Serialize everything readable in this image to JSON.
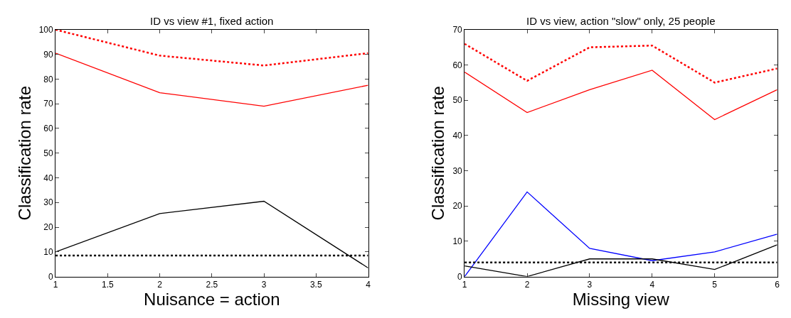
{
  "chart_data": [
    {
      "type": "line",
      "title": "ID vs view #1, fixed action",
      "xlabel": "Nuisance = action",
      "ylabel": "Classification rate",
      "x": [
        1,
        2,
        3,
        4
      ],
      "xlim": [
        1,
        4
      ],
      "xticks": [
        1,
        1.5,
        2,
        2.5,
        3,
        3.5,
        4
      ],
      "ylim": [
        0,
        100
      ],
      "yticks": [
        0,
        10,
        20,
        30,
        40,
        50,
        60,
        70,
        80,
        90,
        100
      ],
      "marker": "none",
      "series": [
        {
          "color": "#ff0000",
          "line_style": "dotted",
          "values": [
            100,
            89.5,
            85.5,
            90.5
          ]
        },
        {
          "color": "#ff0000",
          "line_style": "solid",
          "values": [
            90.5,
            74.5,
            69,
            77.5
          ]
        },
        {
          "color": "#000000",
          "line_style": "solid",
          "values": [
            10,
            25.5,
            30.5,
            3.5
          ]
        },
        {
          "color": "#000000",
          "line_style": "dotted",
          "values": [
            8.5,
            8.5,
            8.5,
            8.5
          ]
        }
      ]
    },
    {
      "type": "line",
      "title": "ID vs view, action \"slow\" only, 25 people",
      "xlabel": "Missing view",
      "ylabel": "Classification rate",
      "x": [
        1,
        2,
        3,
        4,
        5,
        6
      ],
      "xlim": [
        1,
        6
      ],
      "xticks": [
        1,
        2,
        3,
        4,
        5,
        6
      ],
      "ylim": [
        0,
        70
      ],
      "yticks": [
        0,
        10,
        20,
        30,
        40,
        50,
        60,
        70
      ],
      "marker": "none",
      "series": [
        {
          "color": "#ff0000",
          "line_style": "dotted",
          "values": [
            66,
            55.5,
            65,
            65.5,
            55,
            59
          ]
        },
        {
          "color": "#ff0000",
          "line_style": "solid",
          "values": [
            58,
            46.5,
            53,
            58.5,
            44.5,
            53
          ]
        },
        {
          "color": "#0000ff",
          "line_style": "solid",
          "values": [
            0,
            24,
            8,
            4.5,
            7,
            12
          ]
        },
        {
          "color": "#000000",
          "line_style": "solid",
          "values": [
            3,
            0,
            5,
            5,
            2,
            9
          ]
        },
        {
          "color": "#000000",
          "line_style": "dotted",
          "values": [
            4,
            4,
            4,
            4,
            4,
            4
          ]
        }
      ]
    }
  ]
}
